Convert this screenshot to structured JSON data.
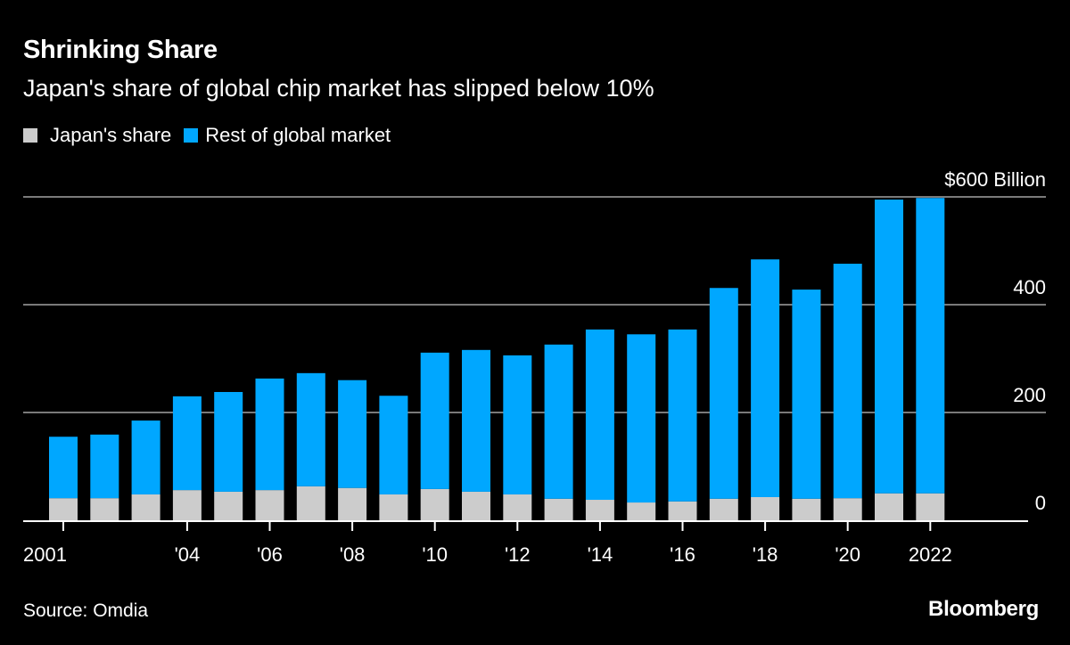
{
  "header": {
    "title": "Shrinking Share",
    "subtitle": "Japan's share of global chip market has slipped below 10%"
  },
  "legend": [
    {
      "label": "Japan's share",
      "color": "#cccccc"
    },
    {
      "label": "Rest of global market",
      "color": "#00a7ff"
    }
  ],
  "footer": {
    "source": "Source: Omdia",
    "brand": "Bloomberg"
  },
  "chart_data": {
    "type": "bar",
    "stacked": true,
    "title": "Shrinking Share",
    "subtitle": "Japan's share of global chip market has slipped below 10%",
    "xlabel": "",
    "ylabel": "$ Billion",
    "ylim": [
      0,
      600
    ],
    "y_ticks": [
      {
        "value": 0,
        "label": "0"
      },
      {
        "value": 200,
        "label": "200"
      },
      {
        "value": 400,
        "label": "400"
      },
      {
        "value": 600,
        "label": "$600 Billion"
      }
    ],
    "grid": true,
    "legend_position": "top-left",
    "categories": [
      "2001",
      "2002",
      "2003",
      "2004",
      "2005",
      "2006",
      "2007",
      "2008",
      "2009",
      "2010",
      "2011",
      "2012",
      "2013",
      "2014",
      "2015",
      "2016",
      "2017",
      "2018",
      "2019",
      "2020",
      "2021",
      "2022"
    ],
    "x_tick_labels": [
      {
        "category": "2001",
        "label": "2001"
      },
      {
        "category": "2004",
        "label": "'04"
      },
      {
        "category": "2006",
        "label": "'06"
      },
      {
        "category": "2008",
        "label": "'08"
      },
      {
        "category": "2010",
        "label": "'10"
      },
      {
        "category": "2012",
        "label": "'12"
      },
      {
        "category": "2014",
        "label": "'14"
      },
      {
        "category": "2016",
        "label": "'16"
      },
      {
        "category": "2018",
        "label": "'18"
      },
      {
        "category": "2020",
        "label": "'20"
      },
      {
        "category": "2022",
        "label": "2022"
      }
    ],
    "series": [
      {
        "name": "Japan's share",
        "color": "#cccccc",
        "values": [
          41,
          41,
          48,
          56,
          53,
          56,
          63,
          60,
          48,
          58,
          53,
          48,
          40,
          38,
          33,
          35,
          40,
          43,
          40,
          41,
          50,
          50
        ]
      },
      {
        "name": "Rest of global market",
        "color": "#00a7ff",
        "values": [
          114,
          118,
          137,
          174,
          185,
          207,
          210,
          200,
          183,
          253,
          263,
          258,
          286,
          316,
          312,
          319,
          391,
          441,
          388,
          435,
          545,
          548
        ]
      }
    ],
    "totals": [
      155,
      159,
      185,
      230,
      238,
      263,
      273,
      260,
      231,
      311,
      316,
      306,
      326,
      354,
      345,
      354,
      431,
      484,
      428,
      476,
      595,
      598
    ]
  }
}
